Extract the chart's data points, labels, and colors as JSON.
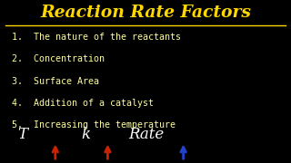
{
  "title": "Reaction Rate Factors",
  "title_color": "#FFD700",
  "background_color": "#000000",
  "items": [
    "1.  The nature of the reactants",
    "2.  Concentration",
    "3.  Surface Area",
    "4.  Addition of a catalyst",
    "5.  Increasing the temperature"
  ],
  "items_color": "#FFFF99",
  "bottom_text_T": "T",
  "bottom_text_K": "k",
  "bottom_text_Rate": "Rate",
  "bottom_arrow1_color": "#CC2200",
  "bottom_arrow2_color": "#CC2200",
  "bottom_arrow3_color": "#2244CC",
  "bottom_color": "#FFFFFF",
  "figsize": [
    3.2,
    1.8
  ],
  "dpi": 100
}
